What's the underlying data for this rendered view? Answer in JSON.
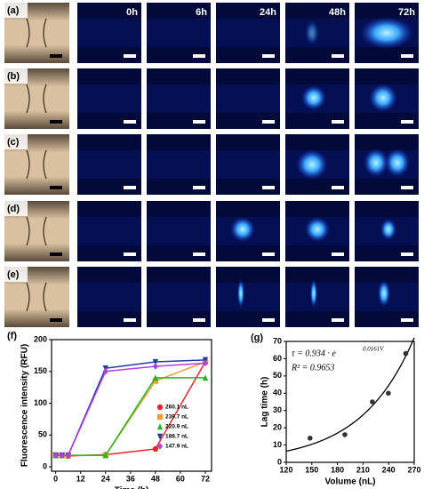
{
  "panels": {
    "rows": [
      "(a)",
      "(b)",
      "(c)",
      "(d)",
      "(e)"
    ],
    "times": [
      "0h",
      "6h",
      "24h",
      "48h",
      "72h"
    ]
  },
  "chart_data": [
    {
      "type": "line",
      "panel_label": "(f)",
      "x_label": "Time (h)",
      "y_label": "Fluorescence intensity (RFU)",
      "xlim": [
        -2,
        75
      ],
      "ylim": [
        -7,
        200
      ],
      "xticks": [
        0,
        12,
        24,
        36,
        48,
        60,
        72
      ],
      "yticks": [
        0,
        50,
        100,
        150,
        200
      ],
      "legend": "lower right",
      "series": [
        {
          "name": "260.1 nL",
          "color": "#e8262a",
          "marker": "circle",
          "x": [
            0,
            3,
            6,
            24,
            48,
            72
          ],
          "values": [
            18,
            18,
            17,
            19,
            28,
            165
          ]
        },
        {
          "name": "239.7 nL",
          "color": "#f39c32",
          "marker": "square",
          "x": [
            0,
            3,
            6,
            24,
            48,
            72
          ],
          "values": [
            18,
            18,
            18,
            18,
            135,
            165
          ]
        },
        {
          "name": "220.9 nL",
          "color": "#22b822",
          "marker": "triangle",
          "x": [
            0,
            3,
            6,
            24,
            48,
            72
          ],
          "values": [
            18,
            18,
            18,
            18,
            140,
            140
          ]
        },
        {
          "name": "188.7 nL",
          "color": "#1f3f9f",
          "marker": "triangle-down",
          "x": [
            0,
            3,
            6,
            24,
            48,
            72
          ],
          "values": [
            18,
            18,
            18,
            155,
            165,
            168
          ]
        },
        {
          "name": "147.9 nL",
          "color": "#b040e0",
          "marker": "diamond",
          "x": [
            0,
            3,
            6,
            24,
            48,
            72
          ],
          "values": [
            18,
            18,
            18,
            150,
            158,
            163
          ]
        }
      ]
    },
    {
      "type": "scatter",
      "panel_label": "(g)",
      "x_label": "Volume (nL)",
      "y_label": "Lag time (h)",
      "xlim": [
        120,
        270
      ],
      "ylim": [
        0,
        70
      ],
      "xticks": [
        120,
        150,
        180,
        210,
        240,
        270
      ],
      "yticks": [
        0,
        10,
        20,
        30,
        40,
        50,
        60,
        70
      ],
      "x": [
        147.9,
        188.7,
        220.9,
        239.7,
        260.1
      ],
      "values": [
        14,
        16,
        35,
        40,
        63
      ],
      "color": "#333333",
      "fit": {
        "a": 0.934,
        "b": 0.0161
      },
      "annotations": [
        "τ = 0.934 · e",
        "0.0161V",
        "R² = 0.9653"
      ]
    }
  ]
}
